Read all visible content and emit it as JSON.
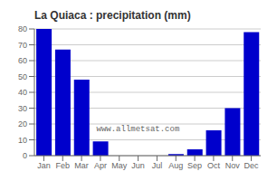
{
  "chart_data": {
    "type": "bar",
    "title": "La Quiaca : precipitation (mm)",
    "categories": [
      "Jan",
      "Feb",
      "Mar",
      "Apr",
      "May",
      "Jun",
      "Jul",
      "Aug",
      "Sep",
      "Oct",
      "Nov",
      "Dec"
    ],
    "values": [
      80,
      67,
      48,
      9,
      0,
      0,
      0,
      1,
      4,
      16,
      30,
      78
    ],
    "color": "#0000CC",
    "ylim": [
      0,
      80
    ],
    "yticks": [
      0,
      10,
      20,
      30,
      40,
      50,
      60,
      70,
      80
    ],
    "grid": true,
    "annotations": [
      "www.allmetsat.com"
    ]
  }
}
